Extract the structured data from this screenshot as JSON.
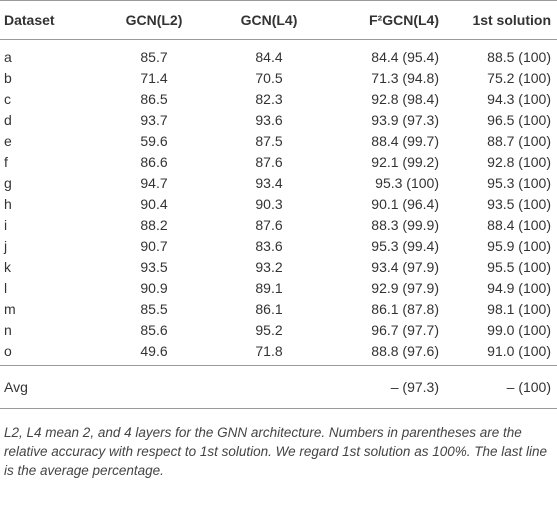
{
  "table": {
    "header": [
      "Dataset",
      "GCN(L2)",
      "GCN(L4)",
      "F²GCN(L4)",
      "1st solution"
    ],
    "rows": [
      [
        "a",
        85.7,
        84.4,
        "84.4 (95.4)",
        "88.5 (100)"
      ],
      [
        "b",
        71.4,
        70.5,
        "71.3 (94.8)",
        "75.2 (100)"
      ],
      [
        "c",
        86.5,
        82.3,
        "92.8 (98.4)",
        "94.3 (100)"
      ],
      [
        "d",
        93.7,
        93.6,
        "93.9 (97.3)",
        "96.5 (100)"
      ],
      [
        "e",
        59.6,
        87.5,
        "88.4 (99.7)",
        "88.7 (100)"
      ],
      [
        "f",
        86.6,
        87.6,
        "92.1 (99.2)",
        "92.8 (100)"
      ],
      [
        "g",
        94.7,
        93.4,
        "95.3 (100)",
        "95.3 (100)"
      ],
      [
        "h",
        90.4,
        90.3,
        "90.1 (96.4)",
        "93.5 (100)"
      ],
      [
        "i",
        88.2,
        87.6,
        "88.3 (99.9)",
        "88.4 (100)"
      ],
      [
        "j",
        90.7,
        83.6,
        "95.3 (99.4)",
        "95.9 (100)"
      ],
      [
        "k",
        93.5,
        93.2,
        "93.4 (97.9)",
        "95.5 (100)"
      ],
      [
        "l",
        90.9,
        89.1,
        "92.9 (97.9)",
        "94.9 (100)"
      ],
      [
        "m",
        85.5,
        86.1,
        "86.1 (87.8)",
        "98.1 (100)"
      ],
      [
        "n",
        85.6,
        95.2,
        "96.7 (97.7)",
        "99.0 (100)"
      ],
      [
        "o",
        49.6,
        71.8,
        "88.8 (97.6)",
        "91.0 (100)"
      ]
    ],
    "average": [
      "Avg",
      null,
      null,
      "– (97.3)",
      "– (100)"
    ],
    "caption": "L2, L4 mean 2, and 4 layers for the GNN architecture. Numbers in parentheses are the relative accuracy with respect to 1st solution. We regard 1st solution as 100%. The last line is the average percentage."
  }
}
